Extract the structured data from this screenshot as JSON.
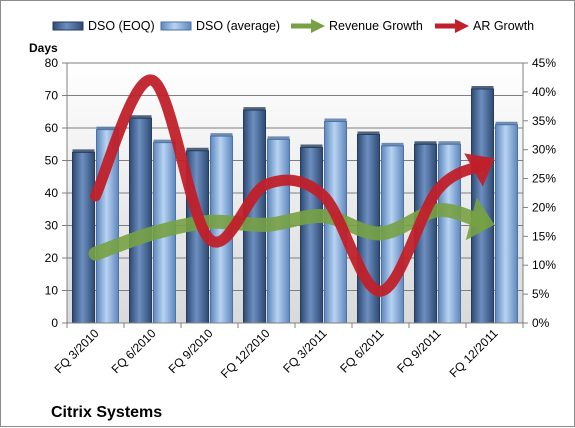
{
  "chart_data": {
    "type": "bar",
    "title": "Citrix Systems",
    "ylabel": "Days",
    "categories": [
      "FQ 3/2010",
      "FQ 6/2010",
      "FQ 9/2010",
      "FQ 12/2010",
      "FQ 3/2011",
      "FQ 6/2011",
      "FQ 9/2011",
      "FQ 12/2011"
    ],
    "ylim": [
      0,
      80
    ],
    "yticks": [
      "0",
      "10",
      "20",
      "30",
      "40",
      "50",
      "60",
      "70",
      "80"
    ],
    "y2lim": [
      0,
      0.45
    ],
    "y2ticks": [
      "0%",
      "5%",
      "10%",
      "15%",
      "20%",
      "25%",
      "30%",
      "35%",
      "40%",
      "45%"
    ],
    "grid": true,
    "legend_position": "top",
    "series": [
      {
        "name": "DSO (EOQ)",
        "type": "bar",
        "axis": "left",
        "color": "#4a6b9a",
        "values": [
          52.5,
          63,
          53,
          65.5,
          54,
          58,
          55,
          72
        ]
      },
      {
        "name": "DSO (average)",
        "type": "bar",
        "axis": "left",
        "color": "#8fb4e0",
        "values": [
          59.5,
          55.5,
          57.5,
          56.5,
          62,
          54.5,
          55,
          61
        ]
      },
      {
        "name": "Revenue Growth",
        "type": "line",
        "axis": "right",
        "color": "#77a144",
        "values": [
          0.12,
          0.155,
          0.175,
          0.17,
          0.185,
          0.155,
          0.195,
          0.17
        ]
      },
      {
        "name": "AR Growth",
        "type": "line",
        "axis": "right",
        "color": "#c0202a",
        "values": [
          0.22,
          0.42,
          0.145,
          0.24,
          0.22,
          0.055,
          0.23,
          0.285
        ]
      }
    ]
  }
}
